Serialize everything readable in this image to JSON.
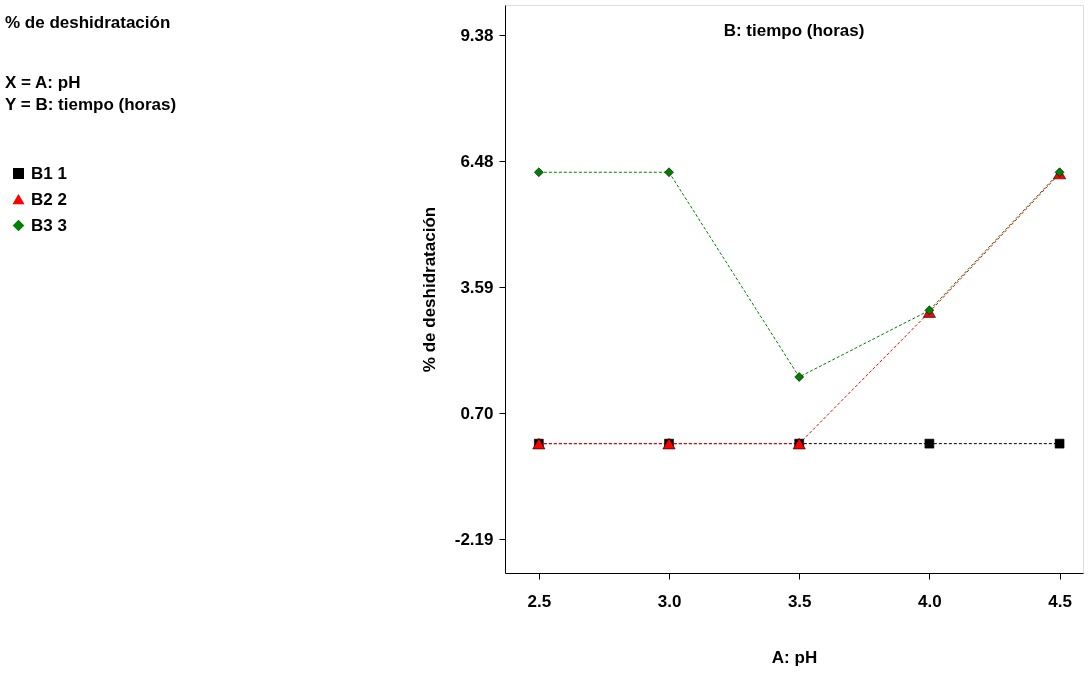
{
  "chart_data": {
    "type": "line",
    "title": "% de deshidratación",
    "annotations": [
      "X = A: pH",
      "Y = B: tiempo (horas)"
    ],
    "legend_title": "B: tiempo (horas)",
    "xlabel": "A: pH",
    "ylabel": "% de deshidratación",
    "x": [
      2.5,
      3.0,
      3.5,
      4.0,
      4.5
    ],
    "series": [
      {
        "name": "B1 1",
        "color": "#000000",
        "marker": "square",
        "values": [
          0.0,
          0.0,
          0.0,
          0.0,
          0.0
        ]
      },
      {
        "name": "B2 2",
        "color": "#ff0000",
        "marker": "triangle",
        "values": [
          0.0,
          0.0,
          0.0,
          3.02,
          6.2
        ]
      },
      {
        "name": "B3 3",
        "color": "#008000",
        "marker": "diamond",
        "values": [
          6.23,
          6.23,
          1.53,
          3.06,
          6.23
        ]
      }
    ],
    "xlim": [
      2.37,
      4.59
    ],
    "xticks": [
      {
        "value": 2.5,
        "label": "2.5"
      },
      {
        "value": 3.0,
        "label": "3.0"
      },
      {
        "value": 3.5,
        "label": "3.5"
      },
      {
        "value": 4.0,
        "label": "4.0"
      },
      {
        "value": 4.5,
        "label": "4.5"
      }
    ],
    "ylim": [
      -2.97,
      10.07
    ],
    "yticks": [
      -2.19,
      {
        "value": 0.7,
        "label": "0.70"
      },
      3.59,
      6.48,
      9.38
    ],
    "grid": false,
    "legend": "left",
    "line_style": "dashed"
  }
}
